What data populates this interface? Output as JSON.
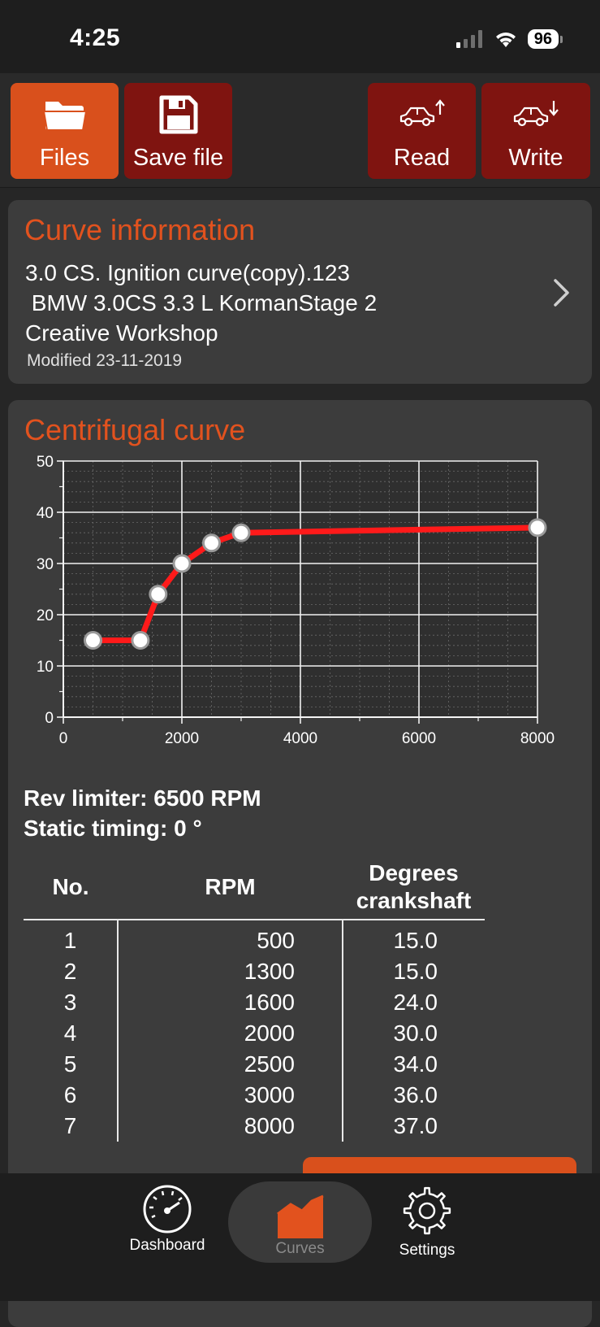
{
  "status": {
    "time": "4:25",
    "battery": "96"
  },
  "toolbar": {
    "files_label": "Files",
    "save_label": "Save file",
    "read_label": "Read",
    "write_label": "Write"
  },
  "curve_info": {
    "title": "Curve information",
    "line1": "3.0 CS. Ignition curve(copy).123",
    "line2": " BMW 3.0CS 3.3 L KormanStage 2",
    "line3": "Creative Workshop",
    "modified": "Modified 23-11-2019"
  },
  "curve": {
    "title": "Centrifugal curve",
    "rev_limiter": "Rev limiter: 6500 RPM",
    "static_timing": "Static timing: 0 °"
  },
  "chart_data": {
    "type": "line",
    "x": [
      500,
      1300,
      1600,
      2000,
      2500,
      3000,
      8000
    ],
    "y": [
      15,
      15,
      24,
      30,
      34,
      36,
      37
    ],
    "xlim": [
      0,
      8000
    ],
    "ylim": [
      0,
      50
    ],
    "x_ticks": [
      "0",
      "2000",
      "4000",
      "6000",
      "8000"
    ],
    "y_ticks": [
      "0",
      "10",
      "20",
      "30",
      "40",
      "50"
    ],
    "grid": true,
    "line_color": "#ff1a1a"
  },
  "table": {
    "headers": {
      "no": "No.",
      "rpm": "RPM",
      "deg1": "Degrees",
      "deg2": "crankshaft"
    },
    "rows": [
      {
        "no": "1",
        "rpm": "500",
        "deg": "15.0"
      },
      {
        "no": "2",
        "rpm": "1300",
        "deg": "15.0"
      },
      {
        "no": "3",
        "rpm": "1600",
        "deg": "24.0"
      },
      {
        "no": "4",
        "rpm": "2000",
        "deg": "30.0"
      },
      {
        "no": "5",
        "rpm": "2500",
        "deg": "34.0"
      },
      {
        "no": "6",
        "rpm": "3000",
        "deg": "36.0"
      },
      {
        "no": "7",
        "rpm": "8000",
        "deg": "37.0"
      }
    ]
  },
  "tabs": {
    "dashboard": "Dashboard",
    "curves": "Curves",
    "settings": "Settings"
  },
  "colors": {
    "accent": "#d9501c",
    "dark_red": "#7f1410"
  }
}
